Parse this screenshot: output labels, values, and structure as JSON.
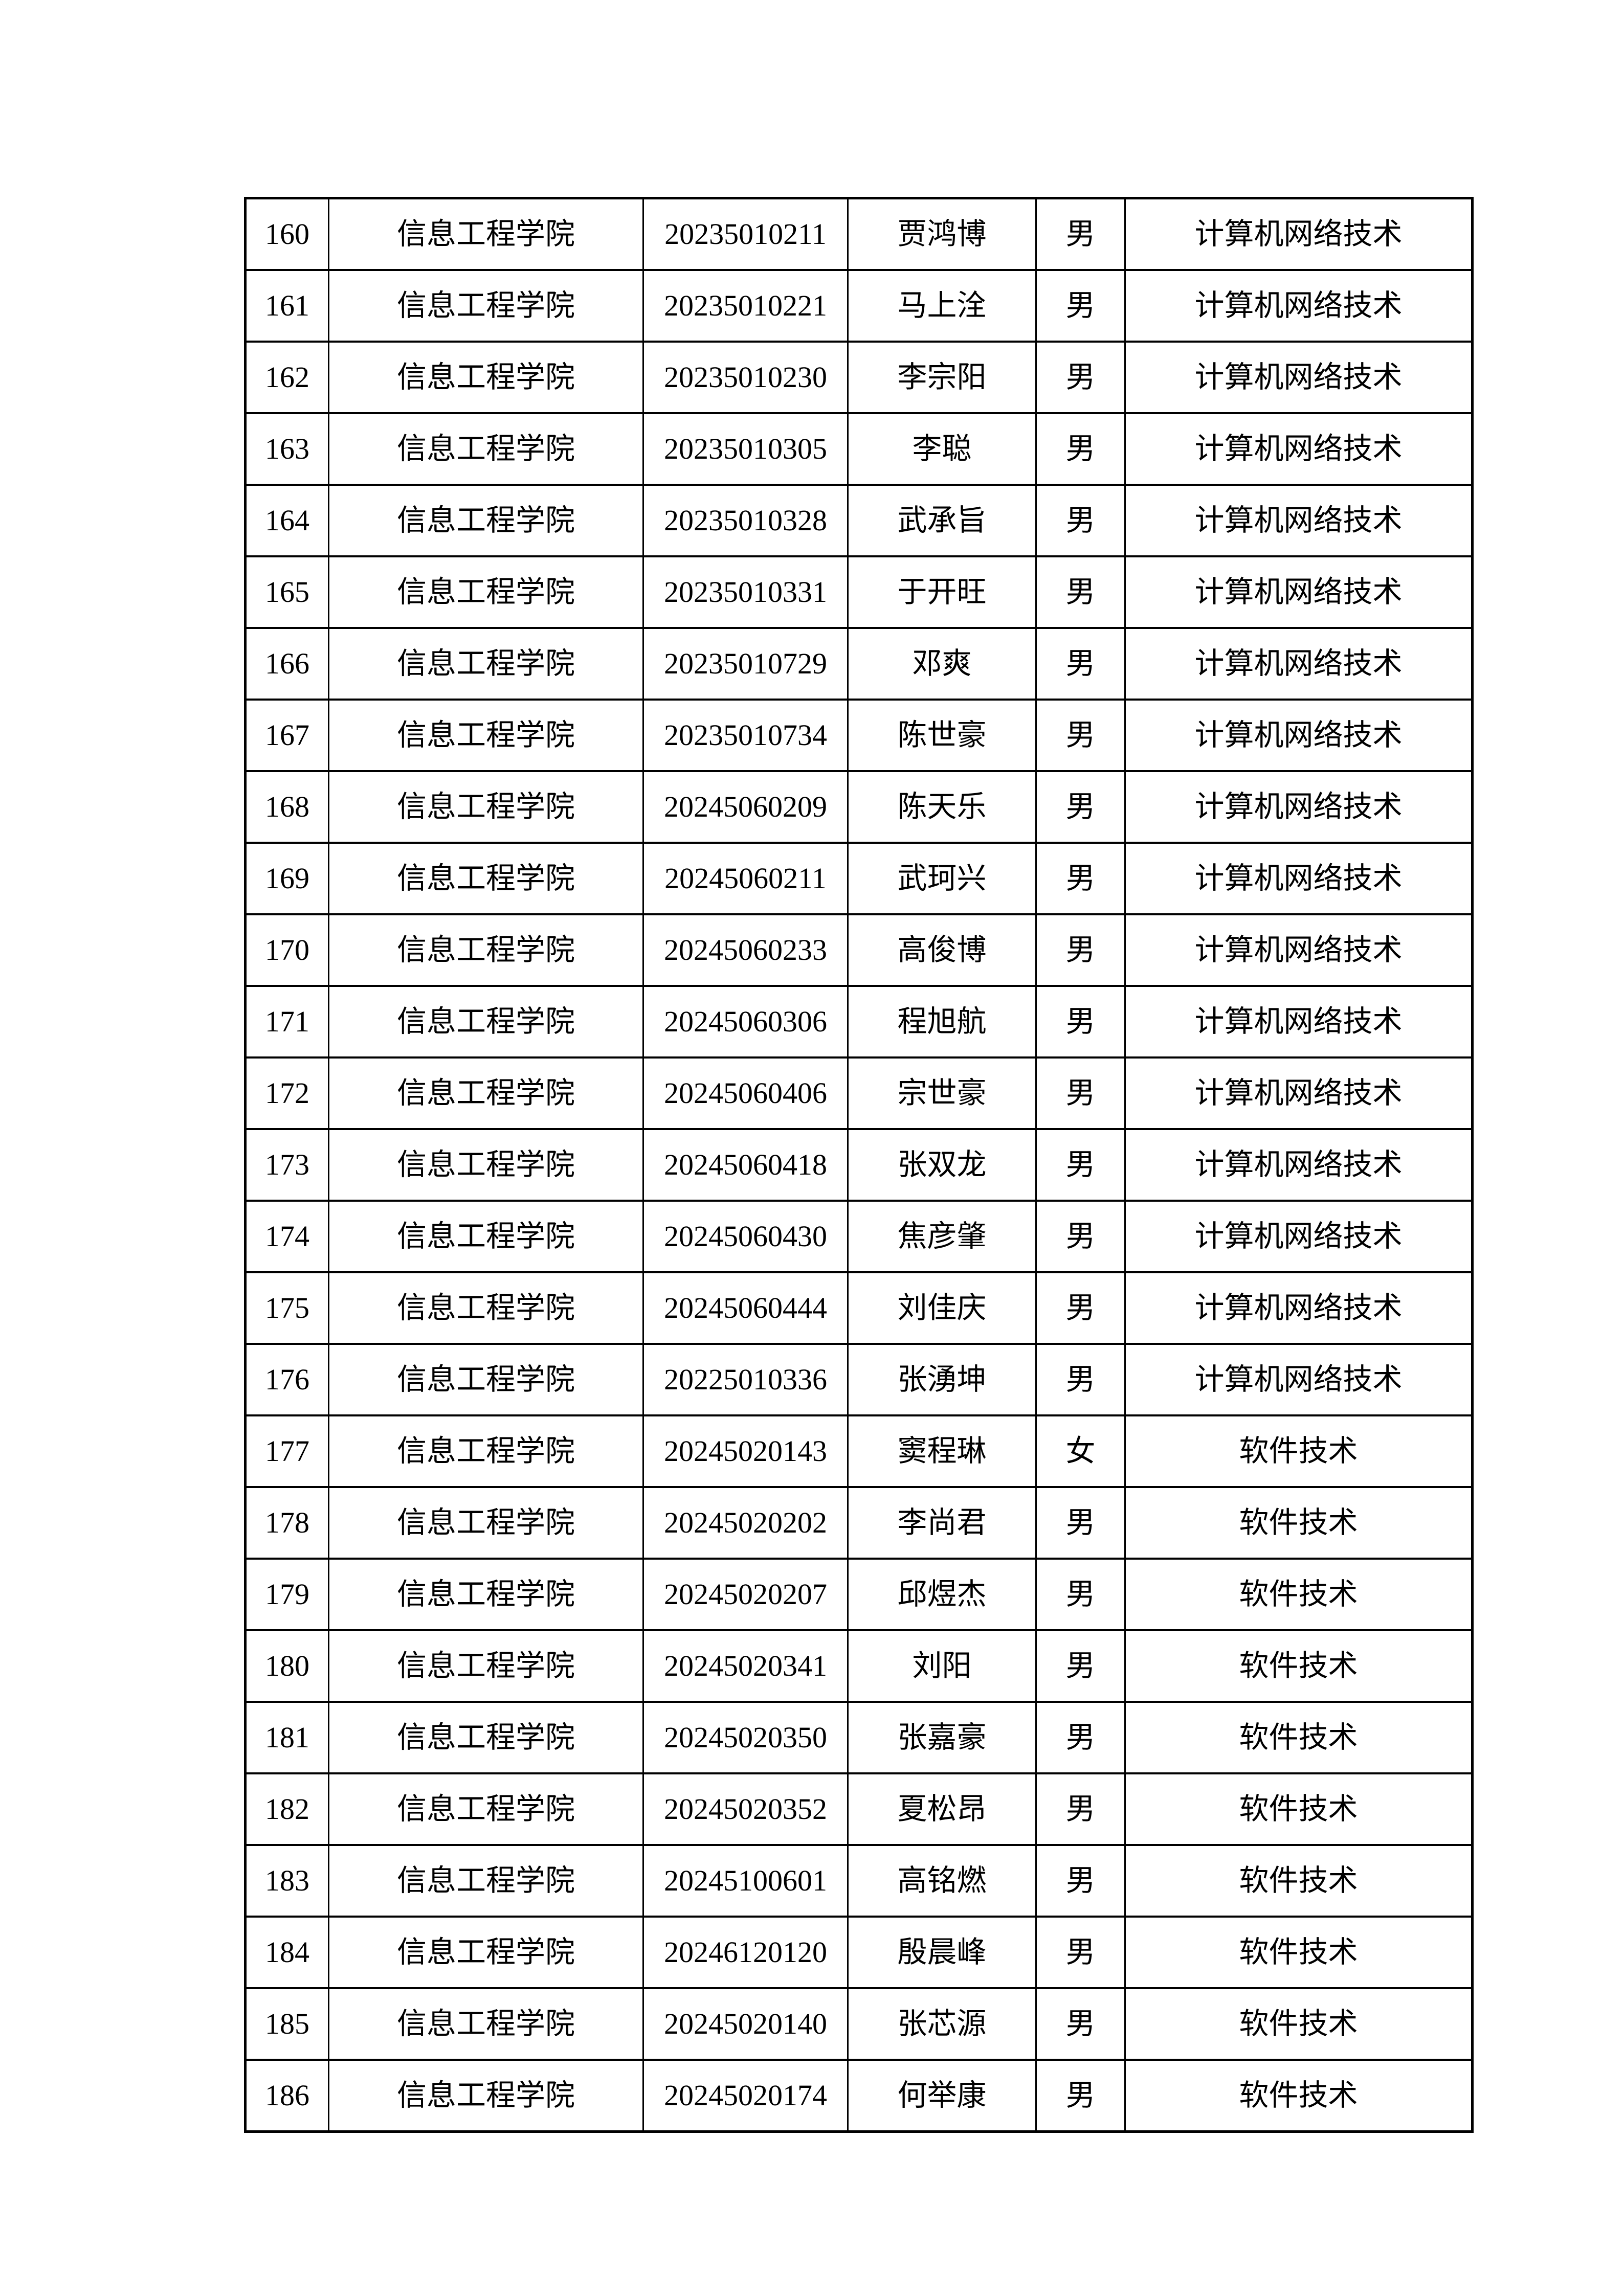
{
  "document": {
    "background_color": "#ffffff",
    "text_color": "#000000",
    "border_color": "#000000"
  },
  "table": {
    "visible_serial_range": "160-186",
    "rows": [
      {
        "serial": "160",
        "college": "信息工程学院",
        "student_id": "20235010211",
        "name": "贾鸿博",
        "gender": "男",
        "major": "计算机网络技术"
      },
      {
        "serial": "161",
        "college": "信息工程学院",
        "student_id": "20235010221",
        "name": "马上洤",
        "gender": "男",
        "major": "计算机网络技术"
      },
      {
        "serial": "162",
        "college": "信息工程学院",
        "student_id": "20235010230",
        "name": "李宗阳",
        "gender": "男",
        "major": "计算机网络技术"
      },
      {
        "serial": "163",
        "college": "信息工程学院",
        "student_id": "20235010305",
        "name": "李聪",
        "gender": "男",
        "major": "计算机网络技术"
      },
      {
        "serial": "164",
        "college": "信息工程学院",
        "student_id": "20235010328",
        "name": "武承旨",
        "gender": "男",
        "major": "计算机网络技术"
      },
      {
        "serial": "165",
        "college": "信息工程学院",
        "student_id": "20235010331",
        "name": "于开旺",
        "gender": "男",
        "major": "计算机网络技术"
      },
      {
        "serial": "166",
        "college": "信息工程学院",
        "student_id": "20235010729",
        "name": "邓爽",
        "gender": "男",
        "major": "计算机网络技术"
      },
      {
        "serial": "167",
        "college": "信息工程学院",
        "student_id": "20235010734",
        "name": "陈世豪",
        "gender": "男",
        "major": "计算机网络技术"
      },
      {
        "serial": "168",
        "college": "信息工程学院",
        "student_id": "20245060209",
        "name": "陈天乐",
        "gender": "男",
        "major": "计算机网络技术"
      },
      {
        "serial": "169",
        "college": "信息工程学院",
        "student_id": "20245060211",
        "name": "武珂兴",
        "gender": "男",
        "major": "计算机网络技术"
      },
      {
        "serial": "170",
        "college": "信息工程学院",
        "student_id": "20245060233",
        "name": "高俊博",
        "gender": "男",
        "major": "计算机网络技术"
      },
      {
        "serial": "171",
        "college": "信息工程学院",
        "student_id": "20245060306",
        "name": "程旭航",
        "gender": "男",
        "major": "计算机网络技术"
      },
      {
        "serial": "172",
        "college": "信息工程学院",
        "student_id": "20245060406",
        "name": "宗世豪",
        "gender": "男",
        "major": "计算机网络技术"
      },
      {
        "serial": "173",
        "college": "信息工程学院",
        "student_id": "20245060418",
        "name": "张双龙",
        "gender": "男",
        "major": "计算机网络技术"
      },
      {
        "serial": "174",
        "college": "信息工程学院",
        "student_id": "20245060430",
        "name": "焦彦肇",
        "gender": "男",
        "major": "计算机网络技术"
      },
      {
        "serial": "175",
        "college": "信息工程学院",
        "student_id": "20245060444",
        "name": "刘佳庆",
        "gender": "男",
        "major": "计算机网络技术"
      },
      {
        "serial": "176",
        "college": "信息工程学院",
        "student_id": "20225010336",
        "name": "张湧坤",
        "gender": "男",
        "major": "计算机网络技术"
      },
      {
        "serial": "177",
        "college": "信息工程学院",
        "student_id": "20245020143",
        "name": "窦程琳",
        "gender": "女",
        "major": "软件技术"
      },
      {
        "serial": "178",
        "college": "信息工程学院",
        "student_id": "20245020202",
        "name": "李尚君",
        "gender": "男",
        "major": "软件技术"
      },
      {
        "serial": "179",
        "college": "信息工程学院",
        "student_id": "20245020207",
        "name": "邱煜杰",
        "gender": "男",
        "major": "软件技术"
      },
      {
        "serial": "180",
        "college": "信息工程学院",
        "student_id": "20245020341",
        "name": "刘阳",
        "gender": "男",
        "major": "软件技术"
      },
      {
        "serial": "181",
        "college": "信息工程学院",
        "student_id": "20245020350",
        "name": "张嘉豪",
        "gender": "男",
        "major": "软件技术"
      },
      {
        "serial": "182",
        "college": "信息工程学院",
        "student_id": "20245020352",
        "name": "夏松昂",
        "gender": "男",
        "major": "软件技术"
      },
      {
        "serial": "183",
        "college": "信息工程学院",
        "student_id": "20245100601",
        "name": "高铭燃",
        "gender": "男",
        "major": "软件技术"
      },
      {
        "serial": "184",
        "college": "信息工程学院",
        "student_id": "20246120120",
        "name": "殷晨峰",
        "gender": "男",
        "major": "软件技术"
      },
      {
        "serial": "185",
        "college": "信息工程学院",
        "student_id": "20245020140",
        "name": "张芯源",
        "gender": "男",
        "major": "软件技术"
      },
      {
        "serial": "186",
        "college": "信息工程学院",
        "student_id": "20245020174",
        "name": "何举康",
        "gender": "男",
        "major": "软件技术"
      }
    ]
  }
}
